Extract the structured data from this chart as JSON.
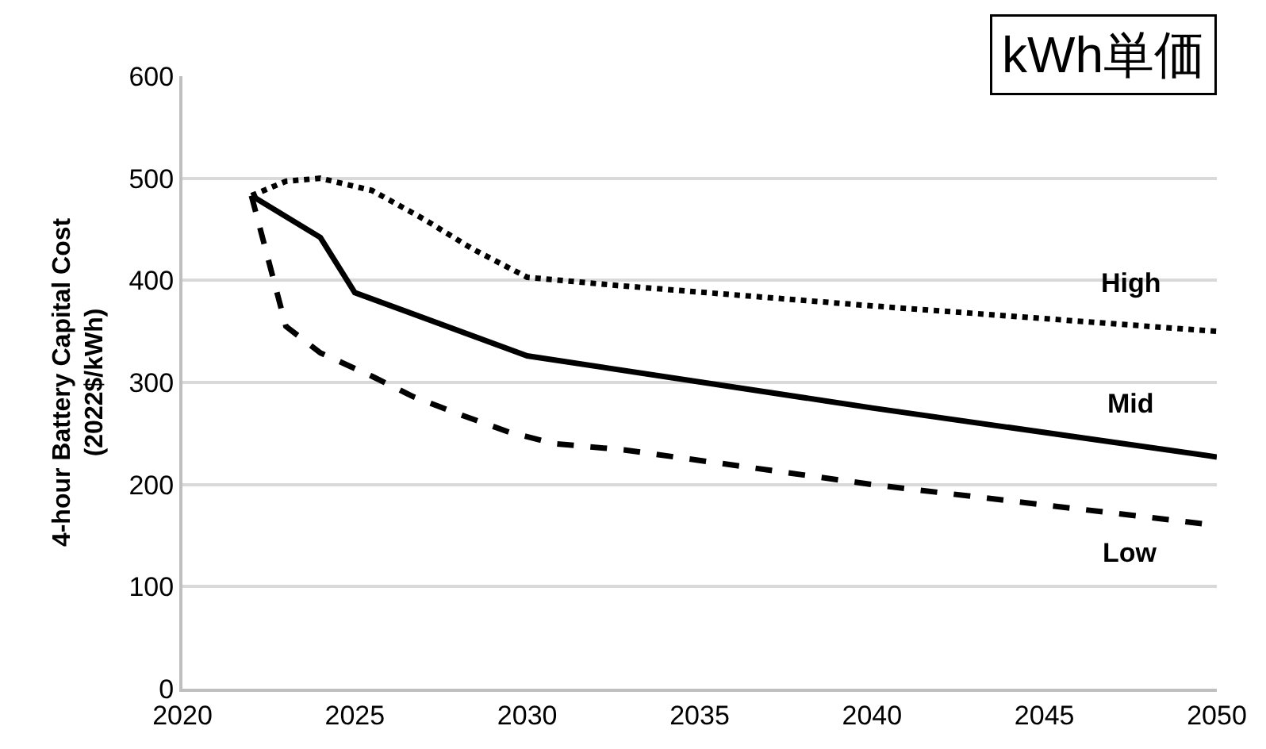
{
  "chart_data": {
    "type": "line",
    "ylabel": "4-hour Battery Capital Cost\n(2022$/kWh)",
    "xlim": [
      2020,
      2050
    ],
    "xticks": [
      2020,
      2025,
      2030,
      2035,
      2040,
      2045,
      2050
    ],
    "ylim": [
      0,
      600
    ],
    "yticks": [
      0,
      100,
      200,
      300,
      400,
      500,
      600
    ],
    "grid": "y",
    "legend": false,
    "marker": "none",
    "series": [
      {
        "name": "High",
        "color": "#000000",
        "line_style": "dotted",
        "x": [
          2022,
          2023,
          2024,
          2025.5,
          2027,
          2028.4,
          2030,
          2032.6,
          2040,
          2050
        ],
        "values": [
          483,
          497,
          500,
          488,
          460,
          431,
          403,
          395,
          375,
          350
        ]
      },
      {
        "name": "Mid",
        "color": "#000000",
        "line_style": "solid",
        "x": [
          2022,
          2024,
          2025,
          2030,
          2040,
          2050
        ],
        "values": [
          483,
          442,
          388,
          326,
          275,
          227
        ]
      },
      {
        "name": "Low",
        "color": "#000000",
        "line_style": "dashed",
        "x": [
          2022,
          2023,
          2024,
          2025.5,
          2026.7,
          2028.1,
          2029.5,
          2030.8,
          2032.8,
          2040,
          2050
        ],
        "values": [
          483,
          355,
          329,
          306,
          286,
          268,
          251,
          240,
          234,
          200,
          160
        ]
      }
    ],
    "annotations": [
      "kWh単価"
    ]
  }
}
